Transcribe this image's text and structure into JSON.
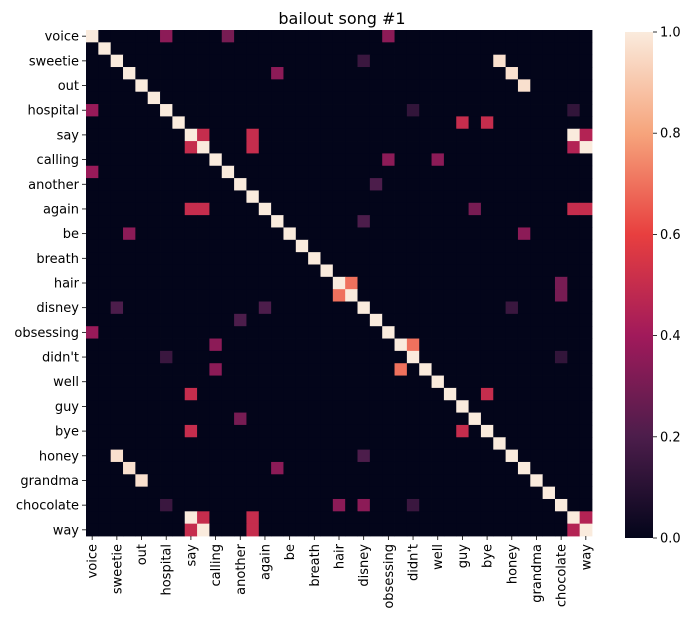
{
  "chart_data": {
    "type": "heatmap",
    "title": "bailout song #1",
    "xlabel": "",
    "ylabel": "",
    "colormap": "rocket",
    "colorbar": {
      "min": 0.0,
      "max": 1.0,
      "ticks": [
        "0.0",
        "0.2",
        "0.4",
        "0.6",
        "0.8",
        "1.0"
      ]
    },
    "n": 41,
    "tick_labels": [
      "voice",
      "sweetie",
      "out",
      "hospital",
      "say",
      "calling",
      "another",
      "again",
      "be",
      "breath",
      "hair",
      "disney",
      "obsessing",
      "didn't",
      "well",
      "guy",
      "bye",
      "honey",
      "grandma",
      "chocolate",
      "way"
    ],
    "y_tick_labels": [
      "voice",
      "sweetie",
      "out",
      "hospital",
      "say",
      "calling",
      "another",
      "again",
      "be",
      "breath",
      "hair",
      "disney",
      "obsessing",
      "didn't",
      "well",
      "guy",
      "bye",
      "honey",
      "grandma",
      "chocolate",
      "way"
    ],
    "x_tick_labels": [
      "voice",
      "sweetie",
      "out",
      "hospital",
      "say",
      "calling",
      "another",
      "again",
      "be",
      "breath",
      "hair",
      "disney",
      "obsessing",
      "didn't",
      "well",
      "guy",
      "bye",
      "honey",
      "grandma",
      "chocolate",
      "way"
    ],
    "tick_indices": [
      0,
      2,
      4,
      6,
      8,
      10,
      12,
      14,
      16,
      18,
      20,
      22,
      24,
      26,
      28,
      30,
      32,
      34,
      36,
      38,
      40
    ],
    "diagonal": 1.0,
    "background": 0.0,
    "cells": [
      [
        0,
        6,
        0.35
      ],
      [
        0,
        11,
        0.3
      ],
      [
        0,
        24,
        0.35
      ],
      [
        2,
        22,
        0.15
      ],
      [
        2,
        33,
        0.97
      ],
      [
        3,
        15,
        0.35
      ],
      [
        3,
        34,
        0.97
      ],
      [
        4,
        35,
        0.97
      ],
      [
        6,
        0,
        0.38
      ],
      [
        6,
        26,
        0.13
      ],
      [
        6,
        39,
        0.13
      ],
      [
        7,
        30,
        0.5
      ],
      [
        7,
        32,
        0.5
      ],
      [
        8,
        8,
        1.0
      ],
      [
        8,
        9,
        0.5
      ],
      [
        8,
        13,
        0.5
      ],
      [
        8,
        39,
        1.0
      ],
      [
        8,
        40,
        0.45
      ],
      [
        9,
        8,
        0.5
      ],
      [
        9,
        9,
        1.0
      ],
      [
        9,
        13,
        0.5
      ],
      [
        9,
        39,
        0.45
      ],
      [
        9,
        40,
        1.0
      ],
      [
        10,
        24,
        0.35
      ],
      [
        10,
        28,
        0.35
      ],
      [
        11,
        0,
        0.38
      ],
      [
        12,
        23,
        0.2
      ],
      [
        14,
        8,
        0.5
      ],
      [
        14,
        9,
        0.5
      ],
      [
        14,
        31,
        0.3
      ],
      [
        14,
        39,
        0.5
      ],
      [
        14,
        40,
        0.5
      ],
      [
        15,
        22,
        0.2
      ],
      [
        16,
        3,
        0.35
      ],
      [
        16,
        35,
        0.35
      ],
      [
        20,
        21,
        0.7
      ],
      [
        20,
        38,
        0.3
      ],
      [
        21,
        20,
        0.7
      ],
      [
        21,
        38,
        0.3
      ],
      [
        22,
        2,
        0.2
      ],
      [
        22,
        14,
        0.2
      ],
      [
        22,
        34,
        0.15
      ],
      [
        23,
        12,
        0.2
      ],
      [
        24,
        0,
        0.38
      ],
      [
        25,
        10,
        0.35
      ],
      [
        25,
        26,
        0.7
      ],
      [
        26,
        6,
        0.15
      ],
      [
        26,
        38,
        0.13
      ],
      [
        27,
        10,
        0.35
      ],
      [
        27,
        25,
        0.7
      ],
      [
        29,
        8,
        0.5
      ],
      [
        29,
        32,
        0.5
      ],
      [
        31,
        12,
        0.3
      ],
      [
        32,
        8,
        0.5
      ],
      [
        32,
        30,
        0.5
      ],
      [
        34,
        2,
        0.97
      ],
      [
        34,
        22,
        0.2
      ],
      [
        35,
        3,
        0.97
      ],
      [
        35,
        15,
        0.35
      ],
      [
        36,
        4,
        0.97
      ],
      [
        38,
        6,
        0.15
      ],
      [
        38,
        20,
        0.35
      ],
      [
        38,
        22,
        0.35
      ],
      [
        38,
        26,
        0.15
      ],
      [
        39,
        8,
        1.0
      ],
      [
        39,
        9,
        0.5
      ],
      [
        39,
        13,
        0.5
      ],
      [
        39,
        39,
        1.0
      ],
      [
        39,
        40,
        0.45
      ],
      [
        40,
        8,
        0.5
      ],
      [
        40,
        9,
        1.0
      ],
      [
        40,
        13,
        0.5
      ],
      [
        40,
        39,
        0.45
      ],
      [
        40,
        40,
        1.0
      ]
    ]
  }
}
